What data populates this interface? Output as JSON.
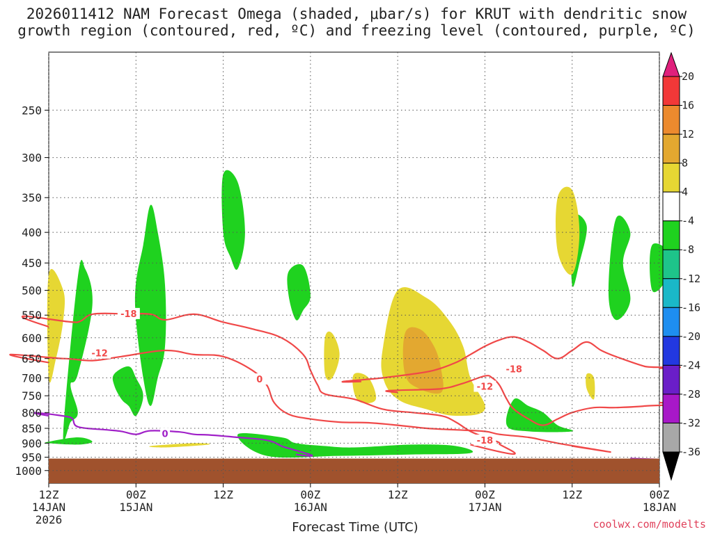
{
  "title": {
    "line1": "2026011412 NAM Forecast Omega (shaded, μbar/s) for KRUT with dendritic snow",
    "line2": "growth region (contoured, red, ºC) and freezing level (contoured, purple, ºC)"
  },
  "xlabel": "Forecast Time (UTC)",
  "credit": "coolwx.com/modelts",
  "chart_data": {
    "type": "heatmap",
    "title": "2026011412 NAM Forecast Omega (shaded, μbar/s) for KRUT with dendritic snow growth region (contoured, red, ºC) and freezing level (contoured, purple, ºC)",
    "xlabel": "Forecast Time (UTC)",
    "ylabel": "",
    "x_unit": "forecast hour from 2026-01-14 12Z",
    "xlim": [
      0,
      84
    ],
    "y_ticks": [
      250,
      300,
      350,
      400,
      450,
      500,
      550,
      600,
      650,
      700,
      750,
      800,
      850,
      900,
      950,
      1000
    ],
    "y_tick_labels": [
      "250",
      "300",
      "350",
      "400",
      "450",
      "500",
      "550",
      "600",
      "650",
      "700",
      "750",
      "800",
      "850",
      "900",
      "950",
      "1000"
    ],
    "x_ticks": [
      0,
      12,
      24,
      36,
      48,
      60,
      72,
      84
    ],
    "x_tick_labels": [
      [
        "12Z",
        "14JAN",
        "2026"
      ],
      [
        "00Z",
        "15JAN"
      ],
      [
        "12Z"
      ],
      [
        "00Z",
        "16JAN"
      ],
      [
        "12Z"
      ],
      [
        "00Z",
        "17JAN"
      ],
      [
        "12Z"
      ],
      [
        "00Z",
        "18JAN"
      ]
    ],
    "grid": true,
    "colorbar": {
      "labels": [
        "20",
        "16",
        "12",
        "8",
        "4",
        "-4",
        "-8",
        "-12",
        "-16",
        "-20",
        "-24",
        "-28",
        "-32",
        "-36"
      ],
      "bands": [
        {
          "from": 16,
          "to": 20,
          "color": "#f23838"
        },
        {
          "from": 12,
          "to": 16,
          "color": "#ec8a2e"
        },
        {
          "from": 8,
          "to": 12,
          "color": "#e3a830"
        },
        {
          "from": 4,
          "to": 8,
          "color": "#e6d733"
        },
        {
          "from": -4,
          "to": 4,
          "color": "#ffffff"
        },
        {
          "from": -8,
          "to": -4,
          "color": "#1fd21f"
        },
        {
          "from": -12,
          "to": -8,
          "color": "#1ec48a"
        },
        {
          "from": -16,
          "to": -12,
          "color": "#1ab8c8"
        },
        {
          "from": -20,
          "to": -16,
          "color": "#1e8ef0"
        },
        {
          "from": -24,
          "to": -20,
          "color": "#2238e0"
        },
        {
          "from": -28,
          "to": -24,
          "color": "#6a1ec8"
        },
        {
          "from": -32,
          "to": -28,
          "color": "#a818c8"
        },
        {
          "from": -36,
          "to": -32,
          "color": "#a8a8a8"
        }
      ],
      "top_arrow_color": "#e0207c",
      "bottom_arrow_color": "#000000"
    },
    "terrain_color": "#a0522d",
    "terrain_top_hpa": 955,
    "contour_labels": {
      "red": [
        "-18",
        "-12",
        "0",
        "-18",
        "-12",
        "-18"
      ],
      "purple": [
        "0"
      ]
    },
    "contours": [
      {
        "name": "-18",
        "color": "#f04848",
        "pts": [
          [
            0,
            575
          ],
          [
            4,
            565
          ],
          [
            6,
            548
          ],
          [
            10,
            547
          ],
          [
            14,
            548
          ],
          [
            16,
            560
          ],
          [
            20,
            548
          ],
          [
            24,
            565
          ],
          [
            28,
            580
          ],
          [
            32,
            600
          ],
          [
            35,
            640
          ],
          [
            36,
            680
          ],
          [
            37,
            720
          ],
          [
            38,
            745
          ],
          [
            42,
            760
          ],
          [
            46,
            790
          ],
          [
            50,
            800
          ],
          [
            54,
            810
          ],
          [
            56,
            830
          ],
          [
            58,
            860
          ],
          [
            60,
            880
          ],
          [
            62,
            902
          ],
          [
            58,
            905
          ]
        ]
      },
      {
        "name": "-12",
        "color": "#f04848",
        "pts": [
          [
            0,
            660
          ],
          [
            2,
            650
          ],
          [
            6,
            655
          ],
          [
            10,
            645
          ],
          [
            16,
            630
          ],
          [
            20,
            640
          ],
          [
            24,
            645
          ],
          [
            28,
            680
          ],
          [
            30,
            720
          ],
          [
            31,
            770
          ],
          [
            33,
            805
          ],
          [
            36,
            820
          ],
          [
            40,
            830
          ],
          [
            44,
            832
          ],
          [
            48,
            840
          ],
          [
            52,
            850
          ],
          [
            56,
            855
          ],
          [
            60,
            860
          ],
          [
            62,
            870
          ],
          [
            66,
            880
          ],
          [
            68,
            890
          ],
          [
            70,
            900
          ],
          [
            72,
            910
          ]
        ]
      },
      {
        "name": "-18b",
        "color": "#f04848",
        "pts": [
          [
            43,
            710
          ],
          [
            46,
            700
          ],
          [
            50,
            690
          ],
          [
            53,
            680
          ],
          [
            56,
            660
          ],
          [
            58,
            640
          ],
          [
            60,
            620
          ],
          [
            62,
            605
          ],
          [
            64,
            598
          ],
          [
            66,
            610
          ],
          [
            68,
            630
          ],
          [
            70,
            650
          ],
          [
            72,
            630
          ],
          [
            74,
            610
          ],
          [
            76,
            630
          ],
          [
            78,
            645
          ],
          [
            82,
            670
          ],
          [
            84,
            675
          ]
        ]
      },
      {
        "name": "-12b",
        "color": "#f04848",
        "pts": [
          [
            48,
            740
          ],
          [
            54,
            730
          ],
          [
            57,
            715
          ],
          [
            60,
            695
          ],
          [
            61,
            700
          ],
          [
            62,
            720
          ],
          [
            63,
            760
          ],
          [
            64,
            790
          ],
          [
            66,
            820
          ],
          [
            68,
            840
          ],
          [
            70,
            820
          ],
          [
            72,
            800
          ],
          [
            75,
            785
          ],
          [
            78,
            785
          ],
          [
            82,
            780
          ],
          [
            84,
            770
          ]
        ]
      },
      {
        "name": "0",
        "color": "#a020c8",
        "pts": [
          [
            0,
            810
          ],
          [
            3,
            815
          ],
          [
            4,
            845
          ],
          [
            8,
            855
          ],
          [
            10,
            860
          ],
          [
            12,
            870
          ],
          [
            14,
            858
          ],
          [
            18,
            862
          ],
          [
            20,
            870
          ],
          [
            22,
            872
          ],
          [
            26,
            880
          ],
          [
            30,
            890
          ],
          [
            32,
            910
          ],
          [
            34,
            940
          ]
        ]
      },
      {
        "name": "0b",
        "color": "#a020c8",
        "pts": [
          [
            80,
            955
          ],
          [
            84,
            958
          ]
        ]
      }
    ],
    "omega_shaded": [
      {
        "color": "#1fd21f",
        "bounds": [
          [
            4,
            475
          ],
          [
            5,
            460
          ],
          [
            6,
            530
          ],
          [
            4,
            690
          ],
          [
            3,
            720
          ],
          [
            4,
            800
          ],
          [
            3,
            830
          ],
          [
            2,
            860
          ]
        ]
      },
      {
        "color": "#1fd21f",
        "bounds": [
          [
            12,
            485
          ],
          [
            13,
            420
          ],
          [
            14,
            360
          ],
          [
            15,
            400
          ],
          [
            16,
            490
          ],
          [
            16,
            620
          ],
          [
            15,
            700
          ],
          [
            14,
            780
          ],
          [
            13,
            700
          ],
          [
            12,
            560
          ]
        ]
      },
      {
        "color": "#1fd21f",
        "bounds": [
          [
            24,
            320
          ],
          [
            26,
            330
          ],
          [
            27,
            400
          ],
          [
            26,
            460
          ],
          [
            25,
            440
          ],
          [
            24,
            400
          ]
        ]
      },
      {
        "color": "#1fd21f",
        "bounds": [
          [
            33,
            465
          ],
          [
            35,
            455
          ],
          [
            36,
            510
          ],
          [
            35,
            540
          ],
          [
            34,
            560
          ],
          [
            33,
            510
          ]
        ]
      },
      {
        "color": "#1fd21f",
        "bounds": [
          [
            9,
            690
          ],
          [
            11,
            670
          ],
          [
            12,
            700
          ],
          [
            13,
            750
          ],
          [
            12,
            810
          ],
          [
            11,
            780
          ],
          [
            10,
            760
          ],
          [
            9,
            720
          ]
        ]
      },
      {
        "color": "#1fd21f",
        "bounds": [
          [
            72,
            380
          ],
          [
            74,
            390
          ],
          [
            73,
            450
          ],
          [
            72,
            490
          ]
        ]
      },
      {
        "color": "#1fd21f",
        "bounds": [
          [
            78,
            380
          ],
          [
            80,
            400
          ],
          [
            79,
            450
          ],
          [
            80,
            520
          ],
          [
            78,
            560
          ],
          [
            77,
            500
          ]
        ]
      },
      {
        "color": "#1fd21f",
        "bounds": [
          [
            83,
            420
          ],
          [
            86,
            440
          ],
          [
            85,
            480
          ],
          [
            83,
            500
          ]
        ]
      },
      {
        "color": "#1fd21f",
        "bounds": [
          [
            64,
            760
          ],
          [
            66,
            780
          ],
          [
            68,
            800
          ],
          [
            70,
            840
          ],
          [
            72,
            860
          ],
          [
            66,
            860
          ],
          [
            63,
            840
          ]
        ]
      },
      {
        "color": "#1fd21f",
        "bounds": [
          [
            26,
            870
          ],
          [
            32,
            880
          ],
          [
            34,
            900
          ],
          [
            38,
            910
          ],
          [
            42,
            915
          ],
          [
            50,
            905
          ],
          [
            56,
            910
          ],
          [
            58,
            935
          ],
          [
            50,
            940
          ],
          [
            40,
            945
          ],
          [
            30,
            945
          ]
        ]
      },
      {
        "color": "#1fd21f",
        "bounds": [
          [
            0,
            895
          ],
          [
            4,
            880
          ],
          [
            6,
            895
          ],
          [
            4,
            905
          ],
          [
            0,
            900
          ]
        ]
      },
      {
        "color": "#e6d733",
        "bounds": [
          [
            0,
            470
          ],
          [
            2,
            500
          ],
          [
            2,
            560
          ],
          [
            1,
            650
          ],
          [
            0,
            700
          ]
        ]
      },
      {
        "color": "#e6d733",
        "bounds": [
          [
            48,
            500
          ],
          [
            52,
            515
          ],
          [
            55,
            560
          ],
          [
            57,
            620
          ],
          [
            58,
            700
          ],
          [
            60,
            790
          ],
          [
            56,
            810
          ],
          [
            52,
            790
          ],
          [
            48,
            760
          ],
          [
            46,
            700
          ],
          [
            46,
            620
          ]
        ]
      },
      {
        "color": "#e3a830",
        "bounds": [
          [
            49,
            590
          ],
          [
            51,
            580
          ],
          [
            53,
            620
          ],
          [
            54,
            680
          ],
          [
            54,
            740
          ],
          [
            51,
            730
          ],
          [
            49,
            690
          ]
        ]
      },
      {
        "color": "#e6d733",
        "bounds": [
          [
            70,
            350
          ],
          [
            72,
            340
          ],
          [
            73,
            400
          ],
          [
            72,
            470
          ],
          [
            70,
            430
          ]
        ]
      },
      {
        "color": "#e6d733",
        "bounds": [
          [
            38,
            600
          ],
          [
            39,
            590
          ],
          [
            40,
            640
          ],
          [
            39,
            700
          ],
          [
            38,
            690
          ]
        ]
      },
      {
        "color": "#e6d733",
        "bounds": [
          [
            42,
            690
          ],
          [
            44,
            700
          ],
          [
            45,
            760
          ],
          [
            43,
            770
          ],
          [
            42,
            740
          ]
        ]
      },
      {
        "color": "#e6d733",
        "bounds": [
          [
            74,
            690
          ],
          [
            75,
            700
          ],
          [
            75,
            760
          ],
          [
            74,
            730
          ]
        ]
      },
      {
        "color": "#e6d733",
        "bounds": [
          [
            14,
            910
          ],
          [
            20,
            900
          ],
          [
            22,
            905
          ],
          [
            16,
            915
          ]
        ]
      }
    ]
  }
}
